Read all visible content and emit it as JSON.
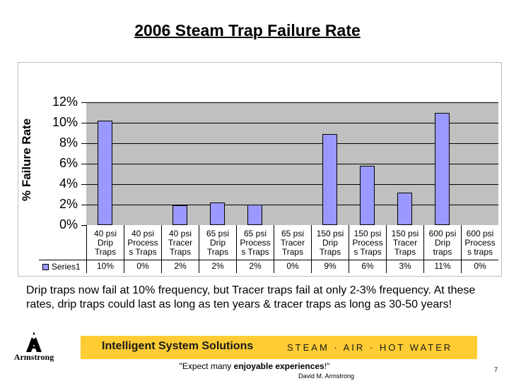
{
  "chart_data": {
    "type": "bar",
    "title": "2006 Steam Trap Failure Rate",
    "ylabel": "% Failure Rate",
    "xlabel": "",
    "ylim": [
      0,
      12
    ],
    "yticks": [
      "12%",
      "10%",
      "8%",
      "6%",
      "4%",
      "2%",
      "0%"
    ],
    "grid": true,
    "legend_position": "bottom-left",
    "categories": [
      [
        "40 psi",
        "Drip",
        "Traps"
      ],
      [
        "40 psi",
        "Process",
        "s Traps"
      ],
      [
        "40 psi",
        "Tracer",
        "Traps"
      ],
      [
        "65 psi",
        "Drip",
        "Traps"
      ],
      [
        "65 psi",
        "Process",
        "s Traps"
      ],
      [
        "65 psi",
        "Tracer",
        "Traps"
      ],
      [
        "150 psi",
        "Drip",
        "Traps"
      ],
      [
        "150 psi",
        "Process",
        "s Traps"
      ],
      [
        "150 psi",
        "Tracer",
        "Traps"
      ],
      [
        "600 psi",
        "Drip",
        "traps"
      ],
      [
        "600 psi",
        "Process",
        "s traps"
      ]
    ],
    "series": [
      {
        "name": "Series1",
        "values": [
          10,
          0,
          2,
          2,
          2,
          0,
          9,
          6,
          3,
          11,
          0
        ],
        "labels": [
          "10%",
          "0%",
          "2%",
          "2%",
          "2%",
          "0%",
          "9%",
          "6%",
          "3%",
          "11%",
          "0%"
        ],
        "color": "#9999ff",
        "plotted": [
          10.2,
          0,
          1.9,
          2.2,
          2.0,
          0,
          8.9,
          5.8,
          3.2,
          11.0,
          0
        ]
      }
    ]
  },
  "caption": "Drip traps now fail at 10% frequency, but Tracer traps fail at only 2-3% frequency. At these rates, drip traps could last as long as ten years & tracer traps as long as 30-50 years!",
  "footer": {
    "logo_text": "Armstrong",
    "banner_left": "Intelligent System Solutions",
    "banner_right": "STEAM · AIR · HOT WATER",
    "banner_color": "#ffcc33",
    "quote_prefix": "\"Expect many ",
    "quote_bold": "enjoyable experiences",
    "quote_suffix": "!\"",
    "author": "David M. Armstrong",
    "page_number": "7"
  }
}
